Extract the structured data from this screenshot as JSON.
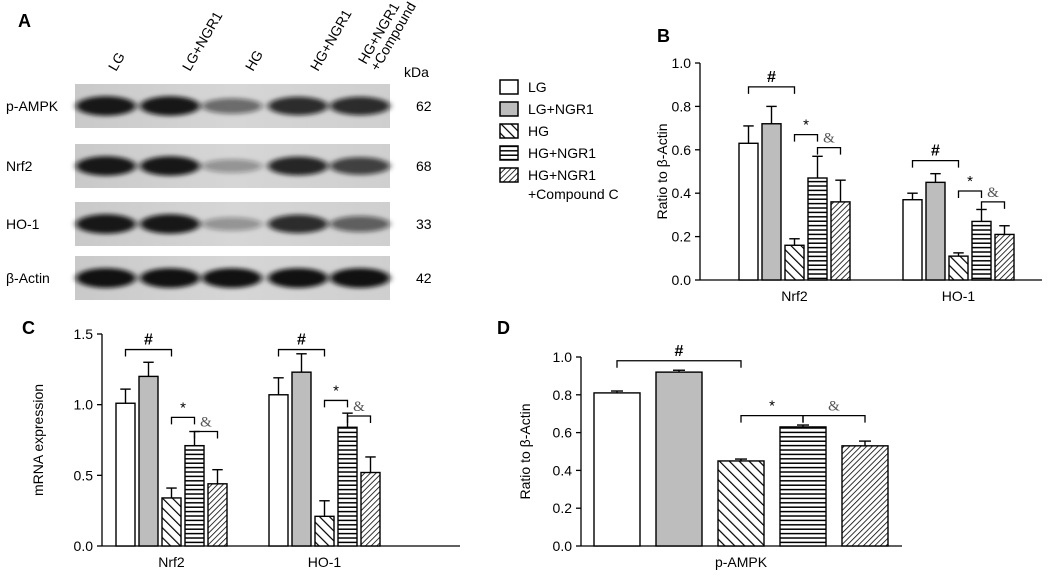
{
  "blot": {
    "letter": "A",
    "lanes": [
      "LG",
      "LG+NGR1",
      "HG",
      "HG+NGR1",
      "HG+NGR1\n+Compound C"
    ],
    "kda_label": "kDa",
    "rows": [
      {
        "label": "p-AMPK",
        "kda": "62",
        "intensity": [
          0.95,
          0.95,
          0.55,
          0.85,
          0.85
        ]
      },
      {
        "label": "Nrf2",
        "kda": "68",
        "intensity": [
          0.95,
          0.95,
          0.35,
          0.88,
          0.75
        ]
      },
      {
        "label": "HO-1",
        "kda": "33",
        "intensity": [
          0.95,
          0.95,
          0.35,
          0.85,
          0.6
        ]
      },
      {
        "label": "β-Actin",
        "kda": "42",
        "intensity": [
          0.98,
          0.98,
          0.98,
          0.98,
          0.98
        ]
      }
    ]
  },
  "legend": {
    "entries": [
      {
        "name": "LG",
        "pattern": "white"
      },
      {
        "name": "LG+NGR1",
        "pattern": "gray"
      },
      {
        "name": "HG",
        "pattern": "diag-wide"
      },
      {
        "name": "HG+NGR1",
        "pattern": "horiz"
      },
      {
        "name": "HG+NGR1\n+Compound C",
        "pattern": "diag-dense"
      }
    ]
  },
  "chart_data": [
    {
      "panel": "B",
      "type": "bar",
      "categories": [
        "Nrf2",
        "HO-1"
      ],
      "ylabel": "Ratio to β-Actin",
      "ylim": [
        0,
        1.0
      ],
      "yticks": [
        "0.0",
        "0.2",
        "0.4",
        "0.6",
        "0.8",
        "1.0"
      ],
      "series": [
        {
          "name": "LG",
          "values": [
            0.63,
            0.37
          ],
          "errors": [
            0.08,
            0.03
          ]
        },
        {
          "name": "LG+NGR1",
          "values": [
            0.72,
            0.45
          ],
          "errors": [
            0.08,
            0.04
          ]
        },
        {
          "name": "HG",
          "values": [
            0.16,
            0.11
          ],
          "errors": [
            0.03,
            0.015
          ]
        },
        {
          "name": "HG+NGR1",
          "values": [
            0.47,
            0.27
          ],
          "errors": [
            0.1,
            0.055
          ]
        },
        {
          "name": "HG+NGR1\n+Compound C",
          "values": [
            0.36,
            0.21
          ],
          "errors": [
            0.1,
            0.04
          ]
        }
      ],
      "annotations": [
        {
          "text": "#",
          "cat": 0,
          "from": 0,
          "to": 2,
          "y": 0.89
        },
        {
          "text": "*",
          "cat": 0,
          "from": 2,
          "to": 3,
          "y": 0.67
        },
        {
          "text": "&",
          "cat": 0,
          "from": 3,
          "to": 4,
          "y": 0.61
        },
        {
          "text": "#",
          "cat": 1,
          "from": 0,
          "to": 2,
          "y": 0.55
        },
        {
          "text": "*",
          "cat": 1,
          "from": 2,
          "to": 3,
          "y": 0.41
        },
        {
          "text": "&",
          "cat": 1,
          "from": 3,
          "to": 4,
          "y": 0.36
        }
      ]
    },
    {
      "panel": "C",
      "type": "bar",
      "categories": [
        "Nrf2",
        "HO-1"
      ],
      "ylabel": "mRNA expression",
      "ylim": [
        0,
        1.5
      ],
      "yticks": [
        "0.0",
        "0.5",
        "1.0",
        "1.5"
      ],
      "series": [
        {
          "name": "LG",
          "values": [
            1.01,
            1.07
          ],
          "errors": [
            0.1,
            0.12
          ]
        },
        {
          "name": "LG+NGR1",
          "values": [
            1.2,
            1.23
          ],
          "errors": [
            0.1,
            0.13
          ]
        },
        {
          "name": "HG",
          "values": [
            0.34,
            0.21
          ],
          "errors": [
            0.07,
            0.11
          ]
        },
        {
          "name": "HG+NGR1",
          "values": [
            0.71,
            0.84
          ],
          "errors": [
            0.1,
            0.1
          ]
        },
        {
          "name": "HG+NGR1\n+Compound C",
          "values": [
            0.44,
            0.52
          ],
          "errors": [
            0.1,
            0.11
          ]
        }
      ],
      "annotations": [
        {
          "text": "#",
          "cat": 0,
          "from": 0,
          "to": 2,
          "y": 1.39
        },
        {
          "text": "*",
          "cat": 0,
          "from": 2,
          "to": 3,
          "y": 0.91
        },
        {
          "text": "&",
          "cat": 0,
          "from": 3,
          "to": 4,
          "y": 0.81
        },
        {
          "text": "#",
          "cat": 1,
          "from": 0,
          "to": 2,
          "y": 1.39
        },
        {
          "text": "*",
          "cat": 1,
          "from": 2,
          "to": 3,
          "y": 1.03
        },
        {
          "text": "&",
          "cat": 1,
          "from": 3,
          "to": 4,
          "y": 0.92
        }
      ]
    },
    {
      "panel": "D",
      "type": "bar",
      "categories": [
        "p-AMPK"
      ],
      "ylabel": "Ratio to β-Actin",
      "ylim": [
        0,
        1.0
      ],
      "yticks": [
        "0.0",
        "0.2",
        "0.4",
        "0.6",
        "0.8",
        "1.0"
      ],
      "series": [
        {
          "name": "LG",
          "values": [
            0.81
          ],
          "errors": [
            0.01
          ]
        },
        {
          "name": "LG+NGR1",
          "values": [
            0.92
          ],
          "errors": [
            0.01
          ]
        },
        {
          "name": "HG",
          "values": [
            0.45
          ],
          "errors": [
            0.01
          ]
        },
        {
          "name": "HG+NGR1",
          "values": [
            0.63
          ],
          "errors": [
            0.01
          ]
        },
        {
          "name": "HG+NGR1\n+Compound C",
          "values": [
            0.53
          ],
          "errors": [
            0.025
          ]
        }
      ],
      "annotations": [
        {
          "text": "#",
          "cat": 0,
          "from": 0,
          "to": 2,
          "y": 0.98
        },
        {
          "text": "*",
          "cat": 0,
          "from": 2,
          "to": 3,
          "y": 0.69
        },
        {
          "text": "&",
          "cat": 0,
          "from": 3,
          "to": 4,
          "y": 0.69
        }
      ]
    }
  ]
}
